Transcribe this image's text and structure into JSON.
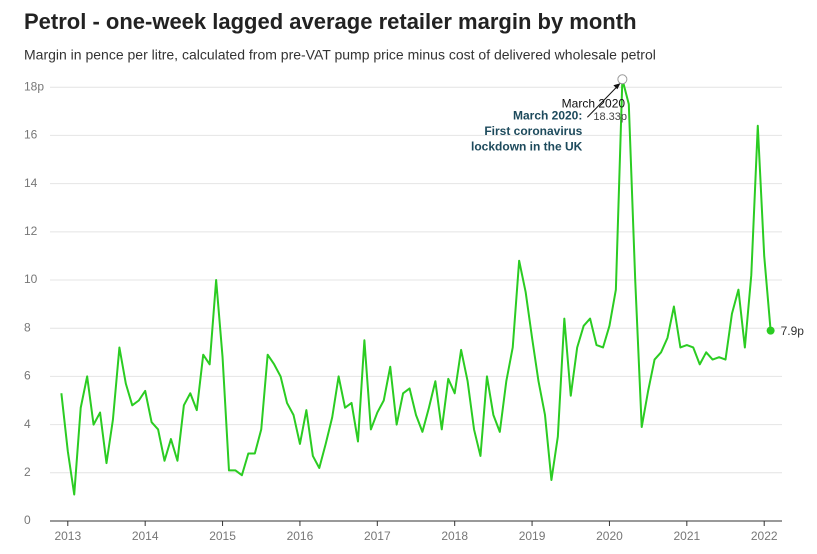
{
  "chart_data": {
    "type": "line",
    "title": "Petrol - one-week lagged average retailer margin by month",
    "subtitle": "Margin in pence per litre, calculated from pre-VAT pump price minus cost of delivered wholesale petrol",
    "x": [
      2012.917,
      2013,
      2013.083,
      2013.167,
      2013.25,
      2013.333,
      2013.417,
      2013.5,
      2013.583,
      2013.667,
      2013.75,
      2013.833,
      2013.917,
      2014,
      2014.083,
      2014.167,
      2014.25,
      2014.333,
      2014.417,
      2014.5,
      2014.583,
      2014.667,
      2014.75,
      2014.833,
      2014.917,
      2015,
      2015.083,
      2015.167,
      2015.25,
      2015.333,
      2015.417,
      2015.5,
      2015.583,
      2015.667,
      2015.75,
      2015.833,
      2015.917,
      2016,
      2016.083,
      2016.167,
      2016.25,
      2016.333,
      2016.417,
      2016.5,
      2016.583,
      2016.667,
      2016.75,
      2016.833,
      2016.917,
      2017,
      2017.083,
      2017.167,
      2017.25,
      2017.333,
      2017.417,
      2017.5,
      2017.583,
      2017.667,
      2017.75,
      2017.833,
      2017.917,
      2018,
      2018.083,
      2018.167,
      2018.25,
      2018.333,
      2018.417,
      2018.5,
      2018.583,
      2018.667,
      2018.75,
      2018.833,
      2018.917,
      2019,
      2019.083,
      2019.167,
      2019.25,
      2019.333,
      2019.417,
      2019.5,
      2019.583,
      2019.667,
      2019.75,
      2019.833,
      2019.917,
      2020,
      2020.083,
      2020.167,
      2020.25,
      2020.333,
      2020.417,
      2020.5,
      2020.583,
      2020.667,
      2020.75,
      2020.833,
      2020.917,
      2021,
      2021.083,
      2021.167,
      2021.25,
      2021.333,
      2021.417,
      2021.5,
      2021.583,
      2021.667,
      2021.75,
      2021.833,
      2021.917,
      2022,
      2022.083
    ],
    "series": [
      {
        "name": "Petrol margin",
        "color": "#2bcc22",
        "values": [
          5.3,
          2.9,
          1.1,
          4.7,
          6.0,
          4.0,
          4.5,
          2.4,
          4.2,
          7.2,
          5.7,
          4.8,
          5.0,
          5.4,
          4.1,
          3.8,
          2.5,
          3.4,
          2.5,
          4.8,
          5.3,
          4.6,
          6.9,
          6.5,
          10.0,
          6.8,
          2.1,
          2.1,
          1.9,
          2.8,
          2.8,
          3.8,
          6.9,
          6.5,
          6.0,
          4.9,
          4.4,
          3.2,
          4.6,
          2.7,
          2.2,
          3.2,
          4.3,
          6.0,
          4.7,
          4.9,
          3.3,
          7.5,
          3.8,
          4.5,
          5.0,
          6.4,
          4.0,
          5.3,
          5.5,
          4.4,
          3.7,
          4.7,
          5.8,
          3.8,
          5.9,
          5.3,
          7.1,
          5.8,
          3.8,
          2.7,
          6.0,
          4.4,
          3.7,
          5.8,
          7.2,
          10.8,
          9.5,
          7.6,
          5.8,
          4.4,
          1.7,
          3.5,
          8.4,
          5.2,
          7.2,
          8.1,
          8.4,
          7.3,
          7.2,
          8.1,
          9.6,
          18.33,
          17.3,
          10.0,
          3.9,
          5.4,
          6.7,
          7.0,
          7.6,
          8.9,
          7.2,
          7.3,
          7.2,
          6.5,
          7.0,
          6.7,
          6.8,
          6.7,
          8.6,
          9.6,
          7.2,
          10.2,
          16.4,
          11.0,
          7.9
        ],
        "value_labels": [
          null,
          null,
          null,
          null,
          null,
          null,
          null,
          null,
          null,
          null,
          null,
          null,
          null,
          null,
          null,
          null,
          null,
          null,
          null,
          null,
          null,
          null,
          null,
          null,
          null,
          null,
          null,
          null,
          null,
          null,
          null,
          null,
          null,
          null,
          null,
          null,
          null,
          null,
          null,
          null,
          null,
          null,
          null,
          null,
          null,
          null,
          null,
          null,
          null,
          null,
          null,
          null,
          null,
          null,
          null,
          null,
          null,
          null,
          null,
          null,
          null,
          null,
          null,
          null,
          null,
          null,
          null,
          null,
          null,
          null,
          null,
          null,
          null,
          null,
          null,
          null,
          null,
          null,
          null,
          null,
          null,
          null,
          null,
          null,
          null,
          null,
          null,
          "18.33p",
          null,
          null,
          null,
          null,
          null,
          null,
          null,
          null,
          null,
          null,
          null,
          null,
          null,
          null,
          null,
          null,
          null,
          null,
          null,
          null,
          null,
          null,
          "7.9p"
        ]
      }
    ],
    "xlim": [
      2012.77,
      2022.23
    ],
    "xticks": [
      2013,
      2014,
      2015,
      2016,
      2017,
      2018,
      2019,
      2020,
      2021,
      2022
    ],
    "ylim": [
      0,
      18.3
    ],
    "yticks": [
      0,
      2,
      4,
      6,
      8,
      10,
      12,
      14,
      16,
      {
        "value": 18,
        "label": "18p"
      }
    ],
    "grid": true,
    "annotations": [
      {
        "text": "March 2020"
      },
      {
        "lines": [
          "March 2020:",
          "First coronavirus",
          "lockdown in the UK"
        ]
      }
    ]
  }
}
